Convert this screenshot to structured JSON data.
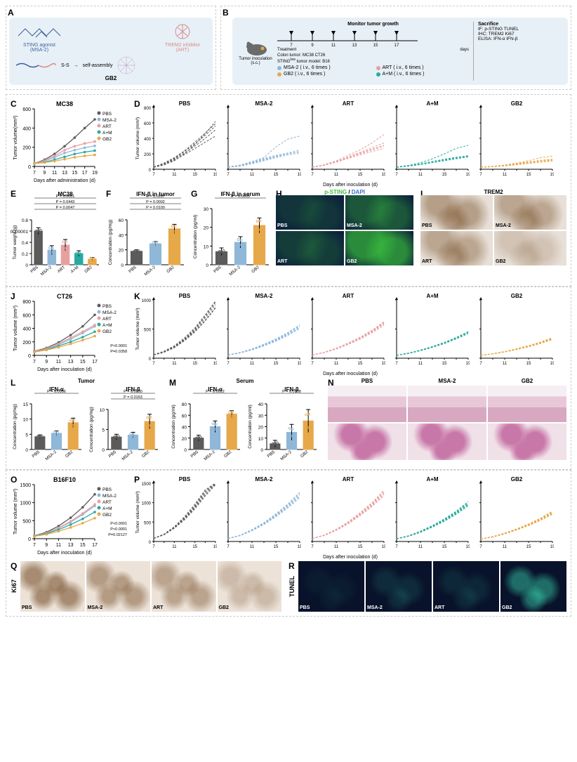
{
  "groups": {
    "PBS": {
      "label": "PBS",
      "color": "#5b5b5b"
    },
    "MSA2": {
      "label": "MSA-2",
      "color": "#8fb7d8"
    },
    "ART": {
      "label": "ART",
      "color": "#e7a0a0"
    },
    "AM": {
      "label": "A+M",
      "color": "#2aa9a0"
    },
    "GB2": {
      "label": "GB2",
      "color": "#e7a84a"
    }
  },
  "panelA": {
    "title_agonist": "STING agonist",
    "title_agonist_name": "(MSA-2)",
    "title_inhibitor": "TREM2 inhibitor",
    "title_inhibitor_name": "(ART)",
    "linker": "S-S",
    "selfassembly": "self-assembly",
    "conjugate": "GB2"
  },
  "panelB": {
    "monitor": "Monitor tumor growth",
    "days": [
      7,
      9,
      11,
      13,
      15,
      17
    ],
    "xlabel": "days",
    "sacrifice": "Sacrifice",
    "tumor_inoculation": "Tumor inoculation (s.c.)",
    "treatment": "Treatment",
    "models_line": "Colon tumor: MC38 CT26",
    "models_line2_prefix": "STING",
    "models_line2_sup": "low",
    "models_line2_suffix": " tumor model: B16",
    "legend": [
      {
        "color": "#8fb7d8",
        "text": "MSA-2 ( i.v., 6 times )"
      },
      {
        "color": "#e7a0a0",
        "text": "ART ( i.v., 6 times )"
      },
      {
        "color": "#e7a84a",
        "text": "GB2 ( i.v., 6 times )"
      },
      {
        "color": "#2aa9a0",
        "text": "A+M ( i.v., 6 times )"
      }
    ],
    "readouts": [
      "IF: p-STING TUNEL",
      "IHC: TREM2 Ki67",
      "ELISA: IFN-α IFN-β"
    ]
  },
  "panelC": {
    "title": "MC38",
    "ylabel": "Tumor volume(mm³)",
    "xlabel": "Days after administration (d)",
    "xvalues": [
      7,
      9,
      11,
      13,
      15,
      17,
      19
    ],
    "ylim": [
      0,
      600
    ],
    "ytick": 200,
    "means": {
      "PBS": [
        30,
        70,
        130,
        210,
        300,
        400,
        490
      ],
      "MSA2": [
        30,
        55,
        95,
        140,
        170,
        195,
        215
      ],
      "ART": [
        30,
        60,
        110,
        170,
        210,
        240,
        260
      ],
      "AM": [
        30,
        45,
        70,
        100,
        130,
        150,
        165
      ],
      "GB2": [
        30,
        40,
        55,
        75,
        95,
        110,
        120
      ]
    }
  },
  "panelD": {
    "ylabel": "Tumor volume (mm³)",
    "xlabel": "Days after inoculation (d)",
    "xvalues": [
      7,
      9,
      11,
      13,
      15,
      17,
      19
    ],
    "ylim": [
      0,
      800
    ],
    "ytick": 200,
    "order": [
      "PBS",
      "MSA2",
      "ART",
      "AM",
      "GB2"
    ],
    "spaghetti": {
      "PBS": [
        [
          30,
          60,
          110,
          200,
          320,
          460,
          620
        ],
        [
          30,
          80,
          150,
          240,
          350,
          470,
          590
        ],
        [
          28,
          65,
          130,
          210,
          300,
          400,
          510
        ],
        [
          25,
          55,
          120,
          190,
          270,
          350,
          430
        ],
        [
          30,
          70,
          140,
          230,
          330,
          440,
          560
        ]
      ],
      "MSA2": [
        [
          30,
          50,
          90,
          140,
          180,
          210,
          250
        ],
        [
          28,
          45,
          80,
          120,
          160,
          200,
          230
        ],
        [
          25,
          40,
          70,
          110,
          150,
          185,
          210
        ],
        [
          30,
          55,
          100,
          150,
          290,
          390,
          430
        ],
        [
          28,
          48,
          85,
          130,
          170,
          200,
          225
        ]
      ],
      "ART": [
        [
          30,
          55,
          100,
          160,
          220,
          280,
          340
        ],
        [
          28,
          52,
          95,
          150,
          200,
          250,
          300
        ],
        [
          25,
          50,
          90,
          140,
          185,
          230,
          270
        ],
        [
          30,
          60,
          110,
          180,
          250,
          340,
          450
        ],
        [
          28,
          54,
          98,
          155,
          210,
          260,
          310
        ]
      ],
      "AM": [
        [
          30,
          45,
          70,
          100,
          130,
          155,
          175
        ],
        [
          28,
          42,
          65,
          95,
          120,
          145,
          170
        ],
        [
          25,
          40,
          60,
          85,
          110,
          135,
          160
        ],
        [
          30,
          50,
          85,
          135,
          200,
          270,
          310
        ],
        [
          28,
          44,
          68,
          98,
          125,
          150,
          170
        ]
      ],
      "GB2": [
        [
          28,
          35,
          50,
          70,
          90,
          110,
          125
        ],
        [
          26,
          33,
          45,
          62,
          80,
          98,
          115
        ],
        [
          25,
          32,
          43,
          58,
          75,
          92,
          108
        ],
        [
          30,
          38,
          55,
          80,
          110,
          150,
          170
        ],
        [
          28,
          36,
          52,
          74,
          95,
          115,
          130
        ]
      ]
    }
  },
  "panelE": {
    "title": "MC38",
    "ylabel": "Tumor weight (g)",
    "xlabel": "Days after inoculation (d)",
    "categories": [
      "PBS",
      "MSA-2",
      "ART",
      "A+M",
      "GB2"
    ],
    "values": [
      0.6,
      0.26,
      0.35,
      0.2,
      0.1
    ],
    "errors": [
      0.06,
      0.08,
      0.1,
      0.05,
      0.03
    ],
    "ylim": [
      0,
      0.8
    ],
    "ytick": 0.2,
    "colors": [
      "#5b5b5b",
      "#8fb7d8",
      "#e7a0a0",
      "#2aa9a0",
      "#e7a84a"
    ],
    "pvals": [
      "P < 0.0001",
      "P = 0.0443",
      "P = 0.0047"
    ]
  },
  "panelF": {
    "title": "IFN-β in tumor",
    "ylabel": "Concentration (pg/mg)",
    "categories": [
      "PBS",
      "MSA-2",
      "GB2"
    ],
    "values": [
      18,
      28,
      48
    ],
    "errors": [
      2,
      3,
      6
    ],
    "ylim": [
      0,
      60
    ],
    "ytick": 20,
    "colors": [
      "#5b5b5b",
      "#8fb7d8",
      "#e7a84a"
    ],
    "pvals": [
      "P = 0.0287",
      "P = 0.0002",
      "P = 0.0100"
    ]
  },
  "panelG": {
    "title": "IFN-β in serum",
    "ylabel": "Concentration (pg/ml)",
    "categories": [
      "PBS",
      "MSA-2",
      "GB2"
    ],
    "values": [
      7,
      12,
      21
    ],
    "errors": [
      2,
      3,
      4
    ],
    "ylim": [
      0,
      30
    ],
    "ytick": 10,
    "colors": [
      "#5b5b5b",
      "#8fb7d8",
      "#e7a84a"
    ],
    "pvals": [
      "P = 0.0095"
    ]
  },
  "panelH": {
    "title": "p-STING / DAPI",
    "title_color_a": "#3fbf3f",
    "title_color_b": "#3a6fd6",
    "cells": [
      "PBS",
      "MSA-2",
      "ART",
      "GB2"
    ]
  },
  "panelI": {
    "title": "TREM2",
    "cells": [
      "PBS",
      "MSA-2",
      "ART",
      "GB2"
    ]
  },
  "panelJ": {
    "title": "CT26",
    "ylabel": "Tumor volume (mm³)",
    "xlabel": "Days after inoculation (d)",
    "xvalues": [
      7,
      9,
      11,
      13,
      15,
      17
    ],
    "ylim": [
      0,
      800
    ],
    "ytick": 200,
    "means": {
      "PBS": [
        60,
        110,
        190,
        300,
        430,
        600
      ],
      "MSA2": [
        55,
        95,
        160,
        240,
        330,
        430
      ],
      "ART": [
        55,
        100,
        170,
        260,
        350,
        450
      ],
      "AM": [
        50,
        85,
        140,
        200,
        270,
        350
      ],
      "GB2": [
        50,
        80,
        120,
        170,
        225,
        285
      ]
    },
    "pvals": [
      "P=0.0358",
      "P<0.0001"
    ]
  },
  "panelK": {
    "ylabel": "Tumor volume (mm³)",
    "xlabel": "Days after inoculation (d)",
    "xvalues": [
      7,
      9,
      11,
      13,
      15,
      17,
      19
    ],
    "ylim": [
      0,
      1000
    ],
    "ytick": 500,
    "order": [
      "PBS",
      "MSA2",
      "ART",
      "AM",
      "GB2"
    ],
    "spaghetti": {
      "PBS": [
        [
          60,
          110,
          200,
          330,
          500,
          720,
          960
        ],
        [
          55,
          100,
          180,
          300,
          450,
          640,
          860
        ],
        [
          60,
          120,
          210,
          350,
          520,
          740,
          980
        ],
        [
          55,
          105,
          190,
          310,
          460,
          650,
          870
        ],
        [
          58,
          108,
          195,
          320,
          480,
          690,
          920
        ]
      ],
      "MSA2": [
        [
          55,
          95,
          155,
          230,
          320,
          430,
          560
        ],
        [
          50,
          88,
          140,
          210,
          290,
          390,
          510
        ],
        [
          55,
          98,
          160,
          240,
          330,
          440,
          570
        ],
        [
          52,
          92,
          150,
          220,
          300,
          400,
          520
        ],
        [
          54,
          94,
          152,
          225,
          310,
          415,
          540
        ]
      ],
      "ART": [
        [
          55,
          100,
          165,
          250,
          350,
          470,
          610
        ],
        [
          52,
          95,
          155,
          235,
          325,
          435,
          565
        ],
        [
          55,
          102,
          170,
          260,
          360,
          480,
          625
        ],
        [
          53,
          98,
          160,
          245,
          340,
          450,
          585
        ],
        [
          54,
          100,
          165,
          252,
          348,
          462,
          600
        ]
      ],
      "AM": [
        [
          50,
          85,
          135,
          195,
          265,
          350,
          450
        ],
        [
          48,
          80,
          128,
          185,
          250,
          330,
          420
        ],
        [
          50,
          88,
          140,
          200,
          270,
          355,
          455
        ],
        [
          49,
          84,
          132,
          190,
          258,
          342,
          438
        ],
        [
          50,
          86,
          136,
          197,
          267,
          352,
          452
        ]
      ],
      "GB2": [
        [
          48,
          75,
          110,
          155,
          205,
          265,
          335
        ],
        [
          46,
          72,
          105,
          148,
          195,
          252,
          318
        ],
        [
          48,
          78,
          115,
          162,
          215,
          278,
          352
        ],
        [
          47,
          74,
          108,
          150,
          200,
          258,
          326
        ],
        [
          48,
          76,
          112,
          158,
          210,
          270,
          342
        ]
      ]
    }
  },
  "panelL": {
    "title": "Tumor",
    "sub": [
      {
        "title": "IFN-α",
        "ylabel": "Concentration (pg/mg)",
        "categories": [
          "PBS",
          "MSA-2",
          "GB2"
        ],
        "values": [
          4.2,
          5.3,
          8.8
        ],
        "errors": [
          0.6,
          0.8,
          1.5
        ],
        "ylim": [
          0,
          15
        ],
        "ytick": 5,
        "colors": [
          "#5b5b5b",
          "#8fb7d8",
          "#e7a84a"
        ],
        "pvals": [
          "P = 0.0056"
        ]
      },
      {
        "title": "IFN-β",
        "ylabel": "Concentration (pg/mg)",
        "categories": [
          "PBS",
          "MSA-2",
          "GB2"
        ],
        "values": [
          3.1,
          3.6,
          7.0
        ],
        "errors": [
          0.7,
          0.7,
          1.8
        ],
        "ylim": [
          0,
          10
        ],
        "ytick": 5,
        "colors": [
          "#5b5b5b",
          "#8fb7d8",
          "#e7a84a"
        ],
        "pvals": [
          "P = 0.0050",
          "P = 0.0163"
        ]
      }
    ]
  },
  "panelM": {
    "title": "Serum",
    "sub": [
      {
        "title": "IFN-α",
        "ylabel": "Concentration (pg/ml)",
        "categories": [
          "PBS",
          "MSA-2",
          "GB2"
        ],
        "values": [
          20,
          40,
          62
        ],
        "errors": [
          5,
          10,
          6
        ],
        "ylim": [
          0,
          80
        ],
        "ytick": 20,
        "colors": [
          "#5b5b5b",
          "#8fb7d8",
          "#e7a84a"
        ],
        "pvals": [
          "P = 0.0022"
        ]
      },
      {
        "title": "IFN-β",
        "ylabel": "Concentration (pg/ml)",
        "categories": [
          "PBS",
          "MSA-2",
          "GB2"
        ],
        "values": [
          5,
          15,
          25
        ],
        "errors": [
          3,
          7,
          10
        ],
        "ylim": [
          0,
          40
        ],
        "ytick": 10,
        "colors": [
          "#5b5b5b",
          "#8fb7d8",
          "#e7a84a"
        ],
        "pvals": [
          "P = 0.0158"
        ]
      }
    ]
  },
  "panelN": {
    "headers": [
      "PBS",
      "MSA-2",
      "GB2"
    ]
  },
  "panelO": {
    "title": "B16F10",
    "ylabel": "Tumor volume (mm³)",
    "xlabel": "Days after inoculation (d)",
    "xvalues": [
      7,
      9,
      11,
      13,
      15,
      17
    ],
    "ylim": [
      0,
      1500
    ],
    "ytick": 500,
    "means": {
      "PBS": [
        80,
        180,
        350,
        580,
        870,
        1230
      ],
      "MSA2": [
        75,
        155,
        290,
        460,
        670,
        910
      ],
      "ART": [
        75,
        160,
        300,
        480,
        700,
        950
      ],
      "AM": [
        70,
        140,
        250,
        390,
        550,
        740
      ],
      "GB2": [
        65,
        120,
        205,
        310,
        430,
        570
      ]
    },
    "pvals": [
      "P=0.02127",
      "P<0.0001",
      "P<0.0001"
    ]
  },
  "panelP": {
    "ylabel": "Tumor volume (mm³)",
    "xlabel": "Days after inoculation (d)",
    "xvalues": [
      7,
      9,
      11,
      13,
      15,
      17,
      19
    ],
    "ylim": [
      0,
      1500
    ],
    "ytick": 500,
    "order": [
      "PBS",
      "MSA2",
      "ART",
      "AM",
      "GB2"
    ],
    "spaghetti": {
      "PBS": [
        [
          80,
          180,
          360,
          600,
          900,
          1260,
          1500
        ],
        [
          78,
          170,
          340,
          560,
          840,
          1170,
          1460
        ],
        [
          82,
          190,
          380,
          640,
          960,
          1330,
          1500
        ],
        [
          79,
          175,
          350,
          580,
          870,
          1210,
          1480
        ],
        [
          81,
          185,
          370,
          610,
          920,
          1290,
          1500
        ]
      ],
      "MSA2": [
        [
          75,
          155,
          290,
          460,
          670,
          910,
          1190
        ],
        [
          72,
          148,
          275,
          435,
          635,
          860,
          1120
        ],
        [
          77,
          162,
          305,
          485,
          710,
          965,
          1265
        ],
        [
          74,
          152,
          285,
          450,
          655,
          890,
          1160
        ],
        [
          76,
          158,
          298,
          472,
          690,
          940,
          1230
        ]
      ],
      "ART": [
        [
          75,
          160,
          300,
          480,
          700,
          950,
          1250
        ],
        [
          72,
          152,
          285,
          455,
          665,
          900,
          1180
        ],
        [
          78,
          168,
          315,
          505,
          740,
          1000,
          1320
        ],
        [
          74,
          156,
          292,
          468,
          682,
          925,
          1215
        ],
        [
          76,
          164,
          308,
          492,
          720,
          975,
          1285
        ]
      ],
      "AM": [
        [
          70,
          140,
          250,
          390,
          550,
          740,
          970
        ],
        [
          67,
          132,
          235,
          368,
          520,
          700,
          915
        ],
        [
          72,
          148,
          265,
          410,
          580,
          780,
          1025
        ],
        [
          69,
          136,
          242,
          378,
          535,
          720,
          942
        ],
        [
          71,
          144,
          258,
          400,
          565,
          760,
          998
        ]
      ],
      "GB2": [
        [
          65,
          120,
          205,
          310,
          430,
          570,
          740
        ],
        [
          62,
          113,
          193,
          295,
          408,
          540,
          700
        ],
        [
          67,
          127,
          217,
          325,
          450,
          600,
          780
        ],
        [
          64,
          117,
          200,
          302,
          420,
          558,
          722
        ],
        [
          66,
          123,
          211,
          318,
          440,
          585,
          760
        ]
      ]
    }
  },
  "panelQ": {
    "title": "Ki67",
    "cells": [
      "PBS",
      "MSA-2",
      "ART",
      "GB2"
    ]
  },
  "panelR": {
    "title": "TUNEL",
    "cells": [
      "PBS",
      "MSA-2",
      "ART",
      "GB2"
    ]
  }
}
